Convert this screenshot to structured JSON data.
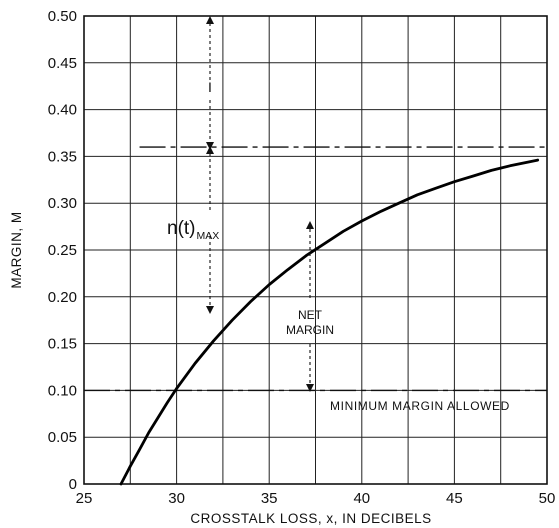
{
  "chart_data": {
    "type": "line",
    "xlabel": "CROSSTALK LOSS, x, IN DECIBELS",
    "ylabel": "MARGIN, M",
    "xlim": [
      25,
      50
    ],
    "ylim": [
      0,
      0.5
    ],
    "x_ticks": [
      25,
      30,
      35,
      40,
      45,
      50
    ],
    "x_tick_labels": [
      "25",
      "30",
      "35",
      "40",
      "45",
      "50"
    ],
    "y_ticks": [
      0,
      0.05,
      0.1,
      0.15,
      0.2,
      0.25,
      0.3,
      0.35,
      0.4,
      0.45,
      0.5
    ],
    "y_tick_labels": [
      "0",
      "0.05",
      "0.10",
      "0.15",
      "0.20",
      "0.25",
      "0.30",
      "0.35",
      "0.40",
      "0.45",
      "0.50"
    ],
    "grid": true,
    "series": [
      {
        "x": [
          27.0,
          27.5,
          28.0,
          28.5,
          29.0,
          29.5,
          30.0,
          31.0,
          32.0,
          33.0,
          34.0,
          35.0,
          36.0,
          37.0,
          38.0,
          39.0,
          40.0,
          41.0,
          42.0,
          43.0,
          44.0,
          45.0,
          46.0,
          47.0,
          48.0,
          49.0,
          49.5
        ],
        "y": [
          0.0,
          0.019,
          0.037,
          0.055,
          0.071,
          0.087,
          0.102,
          0.129,
          0.153,
          0.175,
          0.195,
          0.213,
          0.229,
          0.244,
          0.257,
          0.27,
          0.281,
          0.291,
          0.3,
          0.309,
          0.316,
          0.323,
          0.329,
          0.335,
          0.34,
          0.344,
          0.346
        ]
      }
    ],
    "reference_lines": [
      {
        "y": 0.36,
        "x_start": 28,
        "x_end": 50
      },
      {
        "y": 0.1,
        "x_start": 25,
        "x_end": 50
      }
    ],
    "annotations": [
      {
        "text": "I"
      },
      {
        "text_main": "n(t)",
        "text_sub": "MAX"
      },
      {
        "text_lines": [
          "NET",
          "MARGIN"
        ]
      },
      {
        "text": "MINIMUM MARGIN ALLOWED"
      }
    ]
  }
}
